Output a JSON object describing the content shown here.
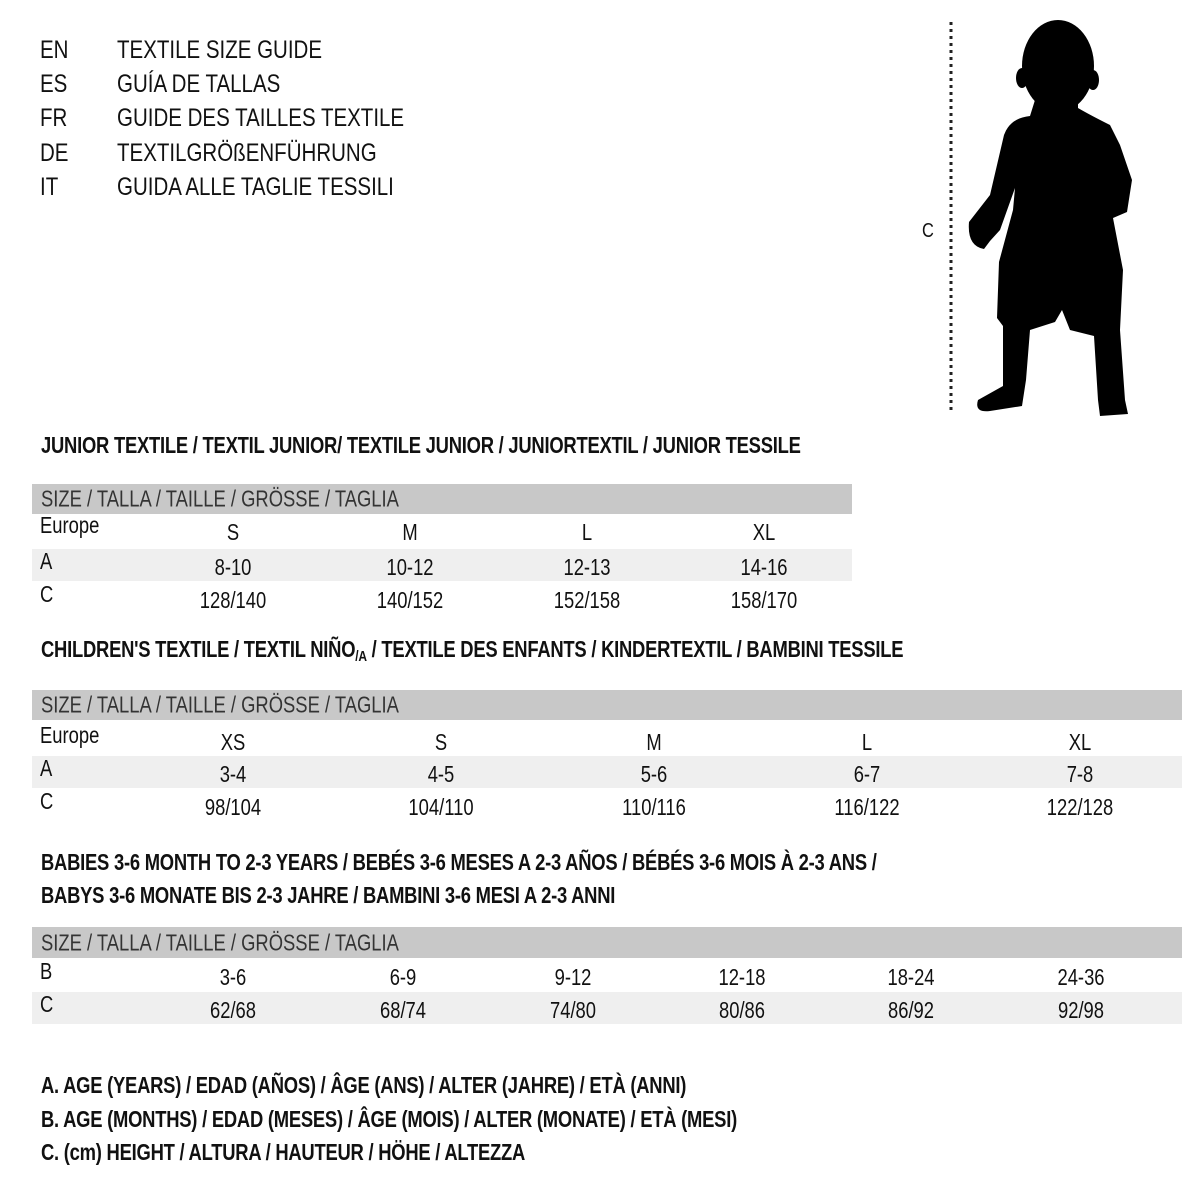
{
  "languages": [
    {
      "code": "EN",
      "title": "TEXTILE SIZE GUIDE"
    },
    {
      "code": "ES",
      "title": "GUÍA DE TALLAS"
    },
    {
      "code": "FR",
      "title": "GUIDE DES TAILLES TEXTILE"
    },
    {
      "code": "DE",
      "title": "TEXTILGRÖßENFÜHRUNG"
    },
    {
      "code": "IT",
      "title": "GUIDA ALLE TAGLIE TESSILI"
    }
  ],
  "figure": {
    "measure_label": "C"
  },
  "tables": [
    {
      "heading": "JUNIOR TEXTILE / TEXTIL JUNIOR/ TEXTILE JUNIOR / JUNIORTEXTIL / JUNIOR TESSILE",
      "size_header": "SIZE / TALLA / TAILLE / GRÖSSE / TAGLIA",
      "rows": [
        {
          "label": "Europe",
          "values": [
            "S",
            "M",
            "L",
            "XL"
          ]
        },
        {
          "label": "A",
          "values": [
            "8-10",
            "10-12",
            "12-13",
            "14-16"
          ]
        },
        {
          "label": "C",
          "values": [
            "128/140",
            "140/152",
            "152/158",
            "158/170"
          ]
        }
      ]
    },
    {
      "heading": "CHILDREN'S TEXTILE / TEXTIL NIÑO",
      "heading_sub": "/A",
      "heading_rest": " / TEXTILE DES ENFANTS / KINDERTEXTIL / BAMBINI TESSILE",
      "size_header": "SIZE / TALLA / TAILLE / GRÖSSE / TAGLIA",
      "rows": [
        {
          "label": "Europe",
          "values": [
            "XS",
            "S",
            "M",
            "L",
            "XL"
          ]
        },
        {
          "label": "A",
          "values": [
            "3-4",
            "4-5",
            "5-6",
            "6-7",
            "7-8"
          ]
        },
        {
          "label": "C",
          "values": [
            "98/104",
            "104/110",
            "110/116",
            "116/122",
            "122/128"
          ]
        }
      ]
    },
    {
      "heading": "BABIES 3-6 MONTH TO 2-3 YEARS / BEBÉS 3-6 MESES A 2-3 AÑOS / BÉBÉS 3-6 MOIS À 2-3 ANS /",
      "heading_line2": "BABYS 3-6 MONATE BIS 2-3 JAHRE / BAMBINI 3-6 MESI A 2-3 ANNI",
      "size_header": "SIZE / TALLA / TAILLE / GRÖSSE / TAGLIA",
      "rows": [
        {
          "label": "B",
          "values": [
            "3-6",
            "6-9",
            "9-12",
            "12-18",
            "18-24",
            "24-36"
          ]
        },
        {
          "label": "C",
          "values": [
            "62/68",
            "68/74",
            "74/80",
            "80/86",
            "86/92",
            "92/98"
          ]
        }
      ]
    }
  ],
  "legend": [
    "A. AGE (YEARS) / EDAD (AÑOS) / ÂGE (ANS) / ALTER (JAHRE) / ETÀ (ANNI)",
    "B. AGE (MONTHS) / EDAD (MESES) / ÂGE (MOIS) / ALTER (MONATE) / ETÀ (MESI)",
    "C. (cm) HEIGHT / ALTURA / HAUTEUR / HÖHE / ALTEZZA"
  ],
  "colors": {
    "header_bar": "#c8c8c8",
    "row_band": "#efefef",
    "text": "#111111"
  }
}
